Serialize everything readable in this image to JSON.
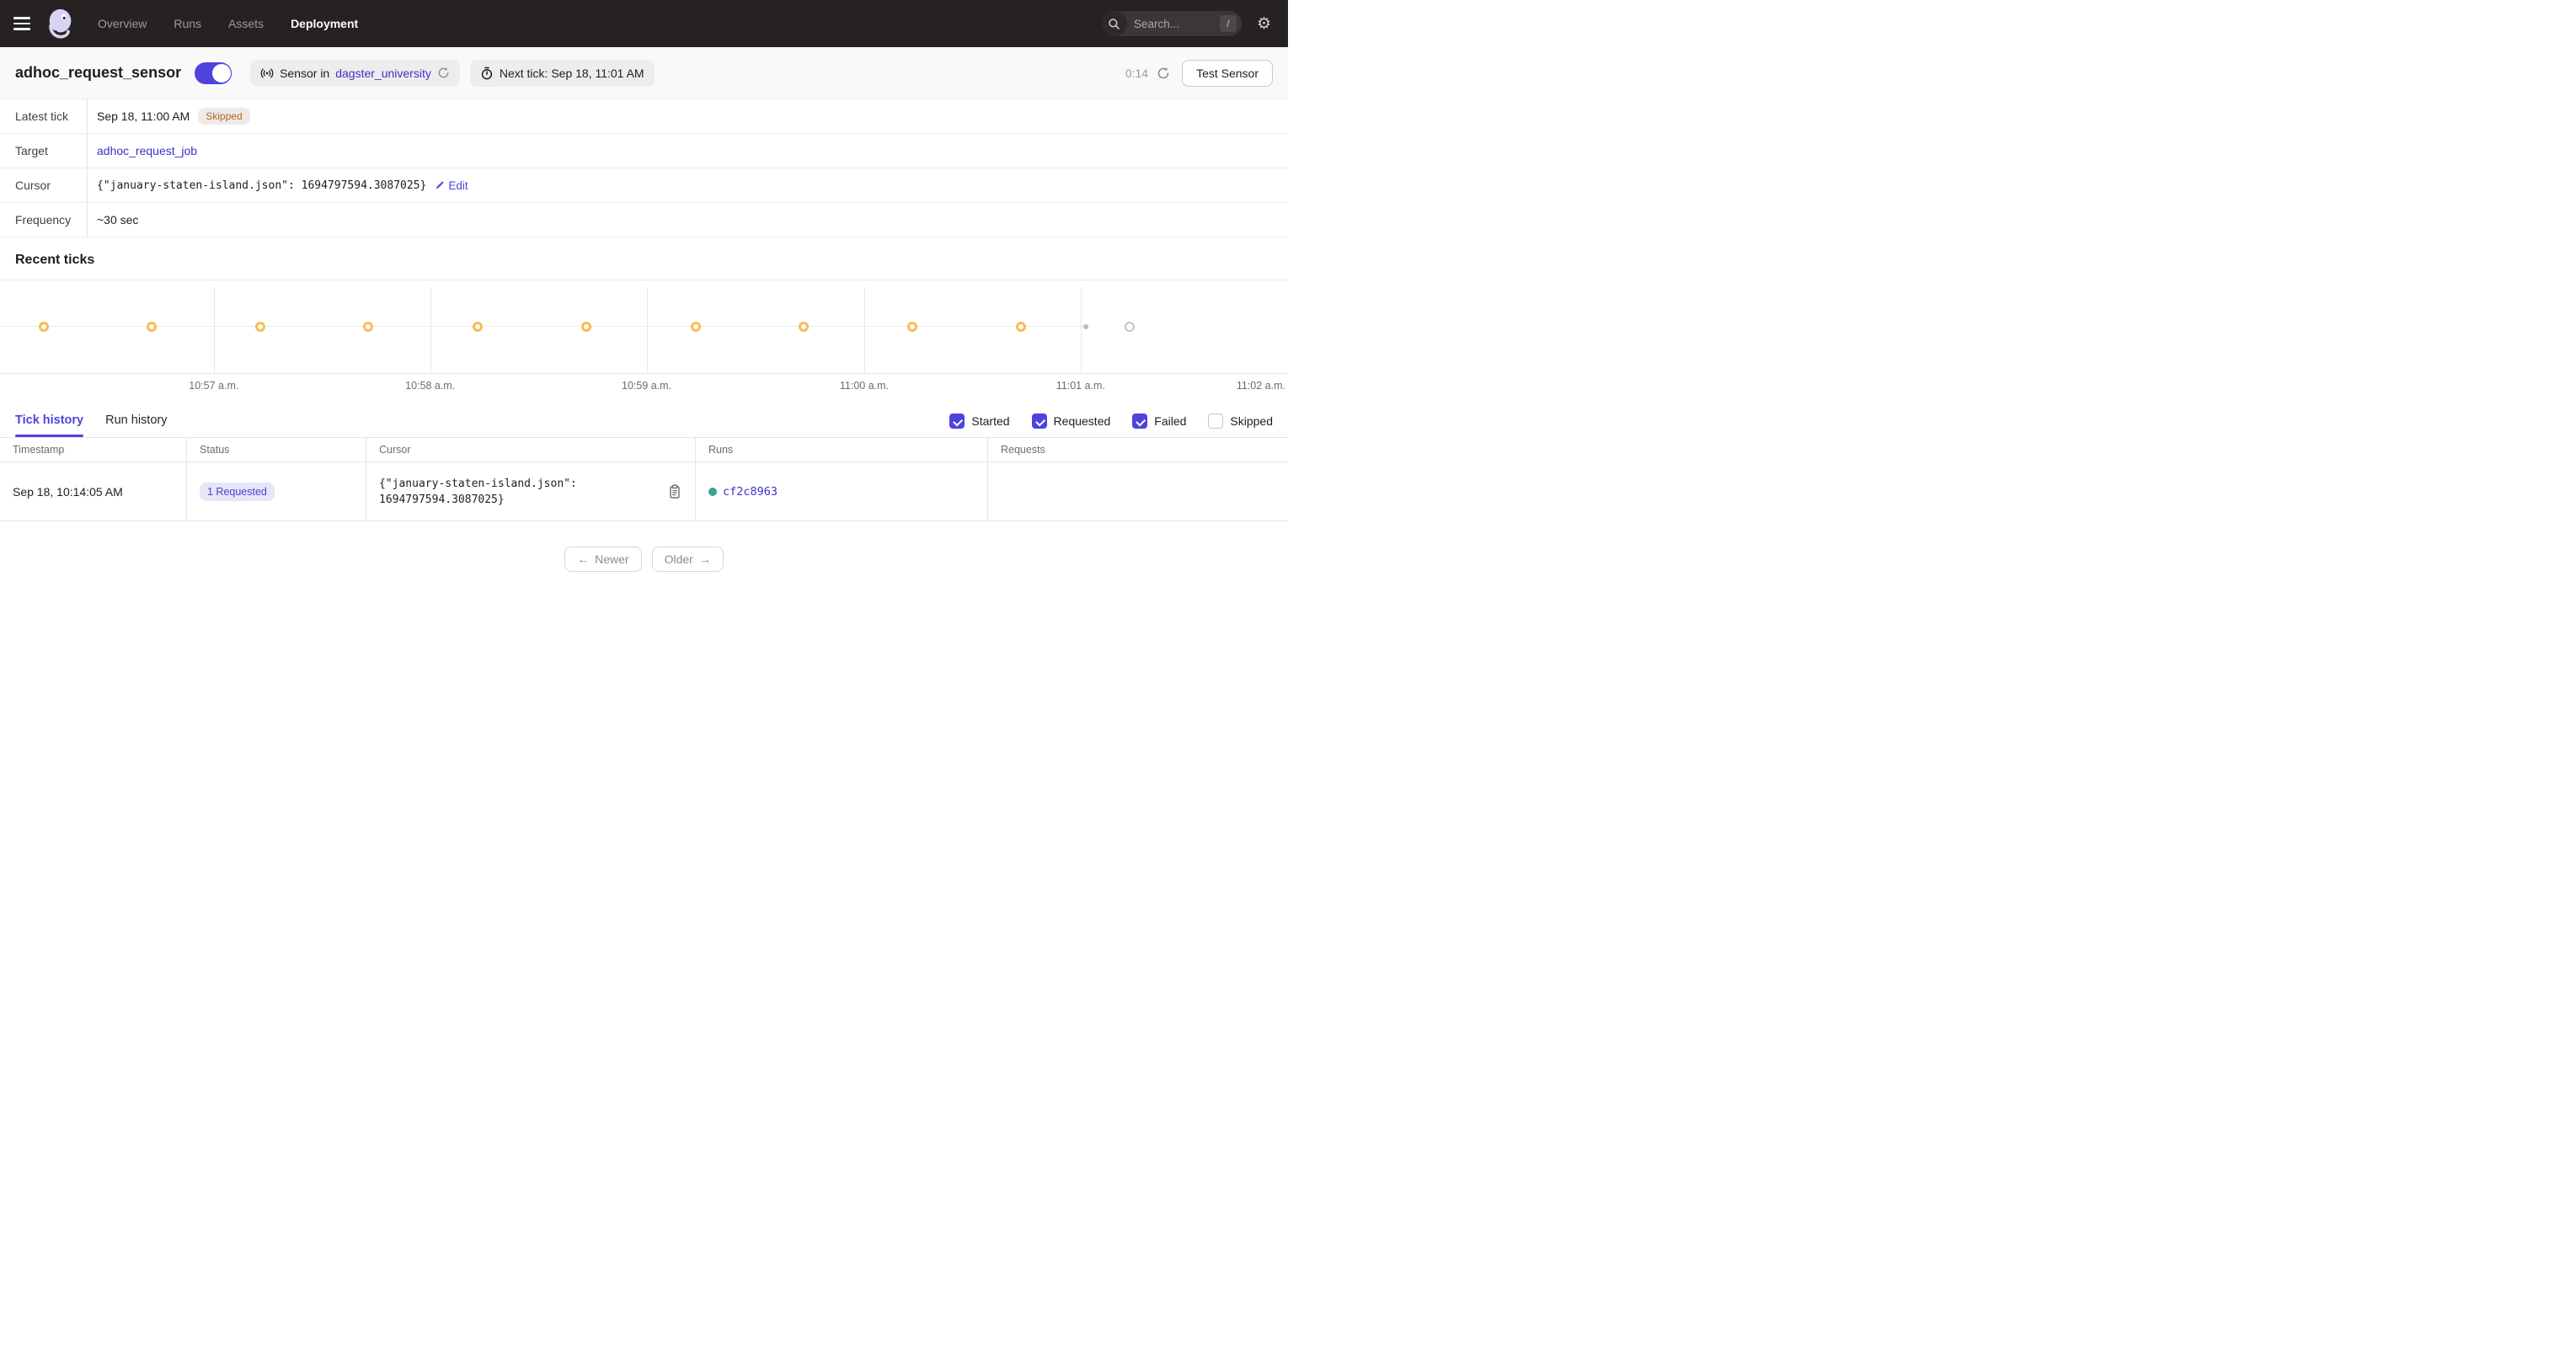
{
  "colors": {
    "accent": "#4f43dd",
    "link": "#3b33c8",
    "tick_orange": "#f7bd52",
    "run_teal": "#3ca391",
    "skipped_text": "#b4671e",
    "nav_bg": "#262223"
  },
  "nav": {
    "items": [
      {
        "label": "Overview",
        "active": false
      },
      {
        "label": "Runs",
        "active": false
      },
      {
        "label": "Assets",
        "active": false
      },
      {
        "label": "Deployment",
        "active": true
      }
    ],
    "search_placeholder": "Search...",
    "search_shortcut": "/"
  },
  "header": {
    "title": "adhoc_request_sensor",
    "toggle_on": true,
    "sensor_prefix": "Sensor in",
    "sensor_repo": "dagster_university",
    "next_tick": "Next tick: Sep 18, 11:01 AM",
    "countdown": "0:14",
    "test_button": "Test Sensor"
  },
  "meta": {
    "latest_tick": {
      "label": "Latest tick",
      "value": "Sep 18, 11:00 AM",
      "badge": "Skipped"
    },
    "target": {
      "label": "Target",
      "value": "adhoc_request_job"
    },
    "cursor": {
      "label": "Cursor",
      "value": "{\"january-staten-island.json\": 1694797594.3087025}",
      "edit_label": "Edit"
    },
    "frequency": {
      "label": "Frequency",
      "value": "~30 sec"
    }
  },
  "recent_ticks": {
    "title": "Recent ticks",
    "chart_data": {
      "type": "scatter",
      "title": "Recent ticks timeline",
      "x_axis_labels": [
        "10:57 a.m.",
        "10:58 a.m.",
        "10:59 a.m.",
        "11:00 a.m.",
        "11:01 a.m.",
        "11:02 a.m."
      ],
      "gridline_pct": [
        16.6,
        33.4,
        50.2,
        67.1,
        83.9,
        100.4
      ],
      "ticks": [
        {
          "pct": 3.4,
          "time": "10:56:13 a.m.",
          "status": "skipped"
        },
        {
          "pct": 11.8,
          "time": "10:56:43 a.m.",
          "status": "skipped"
        },
        {
          "pct": 20.2,
          "time": "10:57:13 a.m.",
          "status": "skipped"
        },
        {
          "pct": 28.6,
          "time": "10:57:43 a.m.",
          "status": "skipped"
        },
        {
          "pct": 37.1,
          "time": "10:58:13 a.m.",
          "status": "skipped"
        },
        {
          "pct": 45.5,
          "time": "10:58:43 a.m.",
          "status": "skipped"
        },
        {
          "pct": 54.0,
          "time": "10:59:13 a.m.",
          "status": "skipped"
        },
        {
          "pct": 62.4,
          "time": "10:59:43 a.m.",
          "status": "skipped"
        },
        {
          "pct": 70.8,
          "time": "11:00:13 a.m.",
          "status": "skipped"
        },
        {
          "pct": 79.3,
          "time": "11:00:43 a.m.",
          "status": "skipped"
        }
      ],
      "now_marker_pct": 84.3,
      "next_tick_marker_pct": 87.7,
      "track_end_pct": 84.3
    }
  },
  "tabs": [
    {
      "label": "Tick history",
      "active": true
    },
    {
      "label": "Run history",
      "active": false
    }
  ],
  "filters": [
    {
      "label": "Started",
      "checked": true
    },
    {
      "label": "Requested",
      "checked": true
    },
    {
      "label": "Failed",
      "checked": true
    },
    {
      "label": "Skipped",
      "checked": false
    }
  ],
  "tick_table": {
    "headers": [
      "Timestamp",
      "Status",
      "Cursor",
      "Runs",
      "Requests"
    ],
    "rows": [
      {
        "timestamp": "Sep 18, 10:14:05 AM",
        "status_badge": "1 Requested",
        "cursor": "{\"january-staten-island.json\": 1694797594.3087025}",
        "runs": [
          {
            "id": "cf2c8963",
            "status_color": "#3ca391"
          }
        ],
        "requests": ""
      }
    ]
  },
  "pagination": {
    "newer": "Newer",
    "older": "Older",
    "newer_arrow": "←",
    "older_arrow": "→"
  }
}
